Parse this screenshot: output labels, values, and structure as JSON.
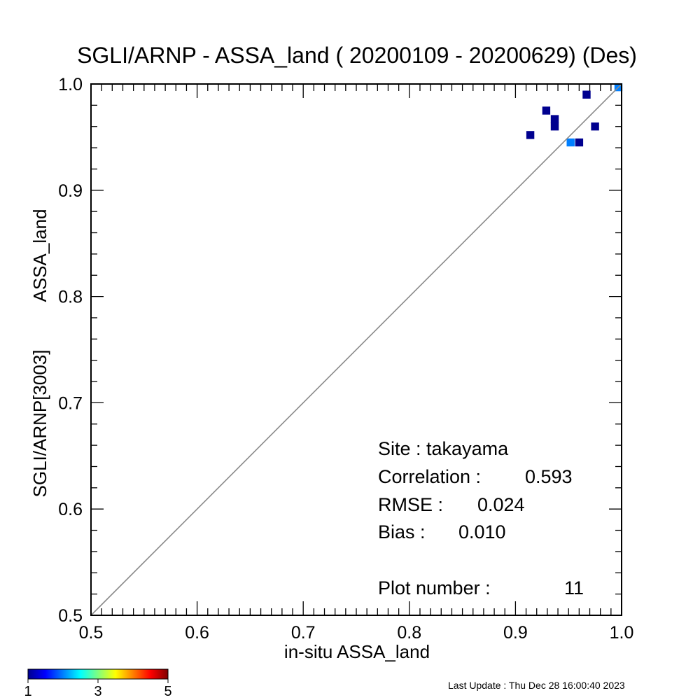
{
  "chart_data": {
    "type": "heatmap",
    "title": "SGLI/ARNP - ASSA_land ( 20200109 - 20200629) (Des)",
    "xlabel": "in-situ ASSA_land",
    "ylabel_lines": [
      "SGLI/ARNP[3003]",
      "ASSA_land"
    ],
    "xlim": [
      0.5,
      1.0
    ],
    "ylim": [
      0.5,
      1.0
    ],
    "xticks": [
      "0.5",
      "0.6",
      "0.7",
      "0.8",
      "0.9",
      "1.0"
    ],
    "yticks": [
      "0.5",
      "0.6",
      "0.7",
      "0.8",
      "0.9",
      "1.0"
    ],
    "one_to_one_line": true,
    "grid": false,
    "bin_size": 0.0075,
    "cells": [
      {
        "x": 0.914,
        "y": 0.952,
        "count": 1
      },
      {
        "x": 0.929,
        "y": 0.975,
        "count": 1
      },
      {
        "x": 0.937,
        "y": 0.967,
        "count": 1
      },
      {
        "x": 0.937,
        "y": 0.96,
        "count": 1
      },
      {
        "x": 0.952,
        "y": 0.945,
        "count": 2
      },
      {
        "x": 0.96,
        "y": 0.945,
        "count": 1
      },
      {
        "x": 0.967,
        "y": 0.99,
        "count": 1
      },
      {
        "x": 0.975,
        "y": 0.96,
        "count": 1
      },
      {
        "x": 0.997,
        "y": 0.997,
        "count": 2
      }
    ],
    "stats": {
      "site_label": "Site : takayama",
      "correlation_label": "Correlation :",
      "correlation": "0.593",
      "rmse_label": "RMSE :",
      "rmse": "0.024",
      "bias_label": "Bias :",
      "bias": "0.010",
      "plot_number_label": "Plot number :",
      "plot_number": "11"
    },
    "colorbar": {
      "min": 1,
      "max": 5,
      "tick_labels": [
        "1",
        "3",
        "5"
      ],
      "colors": [
        "#00008f",
        "#0000ff",
        "#007fff",
        "#00ffff",
        "#7fff7f",
        "#ffff00",
        "#ff7f00",
        "#ff0000",
        "#7f0000"
      ]
    }
  },
  "footer": {
    "last_update": "Last Update : Thu Dec 28 16:00:40 2023"
  }
}
